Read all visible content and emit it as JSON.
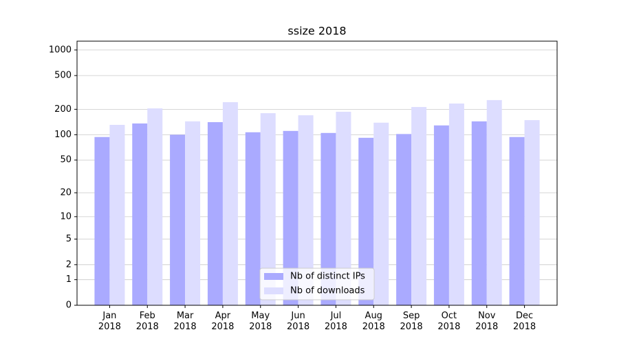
{
  "chart_data": {
    "type": "bar",
    "title": "ssize 2018",
    "categories": [
      "Jan\n2018",
      "Feb\n2018",
      "Mar\n2018",
      "Apr\n2018",
      "May\n2018",
      "Jun\n2018",
      "Jul\n2018",
      "Aug\n2018",
      "Sep\n2018",
      "Oct\n2018",
      "Nov\n2018",
      "Dec\n2018"
    ],
    "series": [
      {
        "name": "Nb of distinct IPs",
        "color": "#aaaaff",
        "values": [
          94,
          136,
          100,
          141,
          107,
          111,
          105,
          92,
          102,
          129,
          144,
          94
        ]
      },
      {
        "name": "Nb of downloads",
        "color": "#ddddff",
        "values": [
          131,
          205,
          144,
          243,
          180,
          170,
          187,
          139,
          213,
          234,
          257,
          149
        ]
      }
    ],
    "scale": "log1p",
    "ylim": [
      0,
      1270
    ],
    "yticks": [
      0,
      1,
      2,
      5,
      10,
      20,
      50,
      100,
      200,
      500,
      1000
    ],
    "grid": true,
    "legend": "lower center"
  }
}
